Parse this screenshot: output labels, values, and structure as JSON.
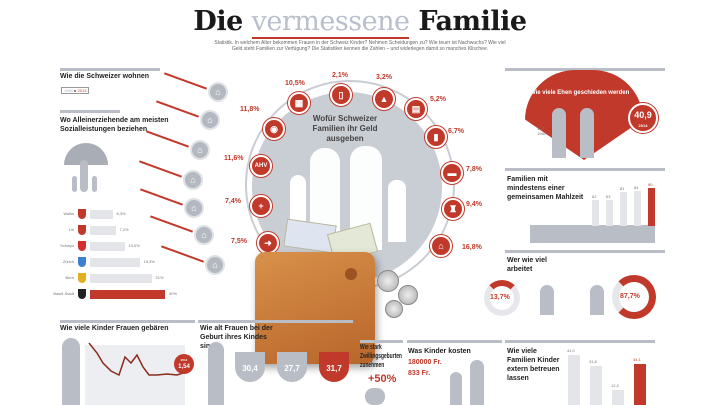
{
  "header": {
    "title_part1": "Die",
    "title_part2": "vermessene",
    "title_part3": "Familie",
    "subtitle": "Statistik. In welchem Alter bekommen Frauen in der Schweiz Kinder? Nehmen Scheidungen zu? Wie teuer ist Nachwuchs? Wie viel Geld steht Familien zur Verfügung? Die Statistiker kennen die Zahlen – und widerlegen damit so manches Klischee."
  },
  "housing": {
    "title": "Wie die Schweizer wohnen",
    "legend": [
      "1990",
      "2013"
    ]
  },
  "single_parents": {
    "title": "Wo Alleinerziehende am meisten Sozialleistungen beziehen",
    "rows": [
      {
        "canton": "Wallis",
        "value": "6,3%",
        "pct": 30
      },
      {
        "canton": "Uri",
        "value": "7,2%",
        "pct": 34
      },
      {
        "canton": "Schwyz",
        "value": "10,0%",
        "pct": 46
      },
      {
        "canton": "Zürich",
        "value": "15,3%",
        "pct": 66
      },
      {
        "canton": "Bern",
        "value": "21%",
        "pct": 82
      },
      {
        "canton": "Basel-Stadt",
        "value": "30%",
        "pct": 100
      }
    ]
  },
  "spending": {
    "title": "Wofür Schweizer Familien ihr Geld ausgeben",
    "items": [
      {
        "value": "10,5%",
        "icon": "groceries"
      },
      {
        "value": "2,1%",
        "icon": "phone"
      },
      {
        "value": "3,2%",
        "icon": "clothing"
      },
      {
        "value": "5,2%",
        "icon": "furniture"
      },
      {
        "value": "6,7%",
        "icon": "fridge"
      },
      {
        "value": "7,8%",
        "icon": "car"
      },
      {
        "value": "9,4%",
        "icon": "wine"
      },
      {
        "value": "16,8%",
        "icon": "house"
      },
      {
        "value": "11,8%",
        "icon": "restaurant"
      },
      {
        "value": "11,6%",
        "icon": "AHV/IV/EO"
      },
      {
        "value": "7,4%",
        "icon": "health"
      },
      {
        "value": "7,5%",
        "icon": "transfer"
      }
    ]
  },
  "divorce": {
    "title": "Wie viele Ehen geschieden werden",
    "start_value": "12,7",
    "start_year": "1960",
    "end_value": "40,9",
    "end_year": "2014"
  },
  "meals": {
    "title": "Familien mit mindestens einer gemeinsamen Mahlzeit",
    "values": [
      {
        "label": "62",
        "pct": 62
      },
      {
        "label": "63",
        "pct": 63
      },
      {
        "label": "81",
        "pct": 81
      },
      {
        "label": "84",
        "pct": 84
      },
      {
        "label": "90",
        "pct": 90
      }
    ]
  },
  "work": {
    "title": "Wer wie viel arbeitet",
    "left_value": "13,7%",
    "right_value": "87,7%"
  },
  "births": {
    "title": "Wie viele Kinder Frauen gebären",
    "end_year": "2014",
    "end_value": "1,54"
  },
  "mother_age": {
    "title": "Wie alt Frauen bei der Geburt ihres Kindes sind",
    "values": [
      "30,4",
      "27,7",
      "31,7"
    ]
  },
  "twins": {
    "title": "Wie stark Zwillingsgeburten zunehmen",
    "value": "+50%"
  },
  "child_cost": {
    "title": "Was Kinder kosten",
    "total": "180000 Fr.",
    "monthly": "833 Fr."
  },
  "childcare": {
    "title": "Wie viele Familien Kinder extern betreuen lassen",
    "values": [
      {
        "label": "41,0",
        "pct": 100
      },
      {
        "label": "31,8",
        "pct": 78
      },
      {
        "label": "12,4",
        "pct": 30
      },
      {
        "label": "34,1",
        "pct": 83
      }
    ]
  }
}
